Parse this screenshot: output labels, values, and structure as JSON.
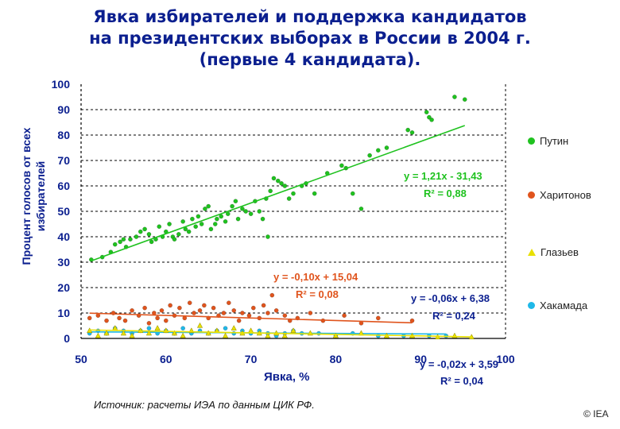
{
  "title_lines": [
    "Явка избирателей и поддержка кандидатов",
    "на президентских выборах в России в 2004 г.",
    "(первые 4 кандидата)."
  ],
  "source": "Источник:  расчеты ИЭА по данным ЦИК РФ.",
  "copyright": "© IEA",
  "colors": {
    "putin": "#1fc21f",
    "kharitonov": "#e0541d",
    "glazyev": "#e8e000",
    "khakamada": "#1fb8e8",
    "axis_text": "#0b1f8f"
  },
  "chart_data": {
    "type": "scatter",
    "xlabel": "Явка, %",
    "ylabel_lines": [
      "Процент голосов от всех",
      "избирателей"
    ],
    "xlim": [
      50,
      100
    ],
    "ylim": [
      0,
      100
    ],
    "x_ticks": [
      50,
      60,
      70,
      80,
      90,
      100
    ],
    "y_ticks": [
      0,
      10,
      20,
      30,
      40,
      50,
      60,
      70,
      80,
      90,
      100
    ],
    "grid": "horizontal dashed",
    "legend_position": "right",
    "series": [
      {
        "name": "Путин",
        "marker": "circle",
        "trend": {
          "slope": 1.21,
          "intercept": -31.43
        },
        "equation": "y = 1,21x - 31,43",
        "r2": "R² = 0,88",
        "points": [
          [
            51.2,
            31
          ],
          [
            52.5,
            32
          ],
          [
            53.5,
            34
          ],
          [
            54,
            37
          ],
          [
            54.6,
            38
          ],
          [
            55,
            39
          ],
          [
            55.3,
            36
          ],
          [
            55.8,
            39
          ],
          [
            56.5,
            40
          ],
          [
            57,
            42
          ],
          [
            57.5,
            43
          ],
          [
            58,
            41
          ],
          [
            58.3,
            38
          ],
          [
            58.8,
            39
          ],
          [
            59.2,
            44
          ],
          [
            59.6,
            40
          ],
          [
            60,
            42
          ],
          [
            60.4,
            45
          ],
          [
            60.8,
            40
          ],
          [
            61,
            39
          ],
          [
            61.5,
            41
          ],
          [
            62,
            46
          ],
          [
            62.3,
            43
          ],
          [
            62.7,
            42
          ],
          [
            63.1,
            47
          ],
          [
            63.5,
            44
          ],
          [
            63.8,
            48
          ],
          [
            64.2,
            45
          ],
          [
            64.6,
            51
          ],
          [
            65,
            52
          ],
          [
            65.3,
            43
          ],
          [
            65.8,
            45
          ],
          [
            66,
            47
          ],
          [
            66.5,
            48
          ],
          [
            67,
            46
          ],
          [
            67.3,
            49
          ],
          [
            67.8,
            52
          ],
          [
            68.2,
            54
          ],
          [
            68.5,
            47
          ],
          [
            69,
            51
          ],
          [
            69.4,
            50
          ],
          [
            70,
            49
          ],
          [
            70.5,
            54
          ],
          [
            71,
            50
          ],
          [
            71.4,
            47
          ],
          [
            71.8,
            55
          ],
          [
            72,
            40
          ],
          [
            72.3,
            58
          ],
          [
            72.7,
            63
          ],
          [
            73.2,
            62
          ],
          [
            73.6,
            61
          ],
          [
            74,
            60
          ],
          [
            74.5,
            55
          ],
          [
            75,
            57
          ],
          [
            76,
            60
          ],
          [
            76.5,
            61
          ],
          [
            77.5,
            57
          ],
          [
            79,
            65
          ],
          [
            80.7,
            68
          ],
          [
            81.2,
            67
          ],
          [
            82,
            57
          ],
          [
            83,
            51
          ],
          [
            84,
            72
          ],
          [
            85,
            74
          ],
          [
            86,
            75
          ],
          [
            88.5,
            82
          ],
          [
            89,
            81
          ],
          [
            90.7,
            89
          ],
          [
            91,
            87
          ],
          [
            91.3,
            86
          ],
          [
            94,
            95
          ],
          [
            95.2,
            94
          ]
        ]
      },
      {
        "name": "Харитонов",
        "marker": "circle",
        "trend": {
          "slope": -0.1,
          "intercept": 15.04
        },
        "equation": "y = -0,10x + 15,04",
        "r2": "R² = 0,08",
        "points": [
          [
            51,
            8
          ],
          [
            52,
            9
          ],
          [
            53,
            7
          ],
          [
            53.8,
            10
          ],
          [
            54.5,
            8
          ],
          [
            55.2,
            7
          ],
          [
            56,
            11
          ],
          [
            56.8,
            9
          ],
          [
            57.5,
            12
          ],
          [
            58,
            6
          ],
          [
            58.6,
            10
          ],
          [
            59,
            8
          ],
          [
            59.5,
            11
          ],
          [
            60,
            7
          ],
          [
            60.5,
            13
          ],
          [
            61,
            9
          ],
          [
            61.6,
            12
          ],
          [
            62.2,
            8
          ],
          [
            62.8,
            14
          ],
          [
            63.3,
            10
          ],
          [
            64,
            11
          ],
          [
            64.5,
            13
          ],
          [
            65,
            8
          ],
          [
            65.6,
            12
          ],
          [
            66.2,
            9
          ],
          [
            66.8,
            10
          ],
          [
            67.4,
            14
          ],
          [
            68,
            11
          ],
          [
            68.6,
            7
          ],
          [
            69,
            10
          ],
          [
            69.8,
            9
          ],
          [
            70.3,
            12
          ],
          [
            71,
            8
          ],
          [
            71.5,
            13
          ],
          [
            72,
            10
          ],
          [
            72.5,
            17
          ],
          [
            73,
            11
          ],
          [
            74,
            9
          ],
          [
            74.6,
            7
          ],
          [
            75.5,
            8
          ],
          [
            77,
            10
          ],
          [
            78.5,
            7
          ],
          [
            81,
            9
          ],
          [
            83,
            6
          ],
          [
            85,
            8
          ],
          [
            89,
            7
          ]
        ]
      },
      {
        "name": "Глазьев",
        "marker": "triangle",
        "trend": {
          "slope": -0.06,
          "intercept": 6.38
        },
        "equation": "y = -0,06x + 6,38",
        "r2": "R² = 0,24",
        "points": [
          [
            51,
            3
          ],
          [
            52,
            1
          ],
          [
            53,
            2
          ],
          [
            54,
            4
          ],
          [
            55,
            2
          ],
          [
            56,
            1
          ],
          [
            57,
            3
          ],
          [
            58,
            2
          ],
          [
            59,
            4
          ],
          [
            60,
            3
          ],
          [
            61,
            2
          ],
          [
            62,
            1
          ],
          [
            63,
            3
          ],
          [
            64,
            5
          ],
          [
            65,
            2
          ],
          [
            66,
            3
          ],
          [
            67,
            1
          ],
          [
            68,
            4
          ],
          [
            69,
            2
          ],
          [
            70,
            3
          ],
          [
            71,
            2
          ],
          [
            72,
            1
          ],
          [
            73,
            2
          ],
          [
            74,
            1
          ],
          [
            75,
            3
          ],
          [
            77,
            2
          ],
          [
            80,
            1
          ],
          [
            83,
            2
          ],
          [
            86,
            1
          ],
          [
            89,
            1
          ],
          [
            92,
            0.5
          ],
          [
            94,
            1
          ],
          [
            96,
            0.5
          ]
        ]
      },
      {
        "name": "Хакамада",
        "marker": "circle",
        "trend": {
          "slope": -0.02,
          "intercept": 3.59
        },
        "equation": "y = -0,02x + 3,59",
        "r2": "R² = 0,04",
        "points": [
          [
            51,
            2
          ],
          [
            52,
            3
          ],
          [
            53,
            2
          ],
          [
            54,
            4
          ],
          [
            55,
            3
          ],
          [
            56,
            2
          ],
          [
            57,
            3
          ],
          [
            58,
            4
          ],
          [
            59,
            2
          ],
          [
            60,
            3
          ],
          [
            61,
            2
          ],
          [
            62,
            4
          ],
          [
            63,
            2
          ],
          [
            64,
            3
          ],
          [
            65,
            2
          ],
          [
            66,
            3
          ],
          [
            67,
            4
          ],
          [
            68,
            2
          ],
          [
            69,
            3
          ],
          [
            70,
            2
          ],
          [
            71,
            3
          ],
          [
            72,
            2
          ],
          [
            73,
            1
          ],
          [
            74,
            2
          ],
          [
            75,
            3
          ],
          [
            76,
            2
          ],
          [
            78,
            2
          ],
          [
            80,
            1
          ],
          [
            82,
            2
          ],
          [
            85,
            1
          ],
          [
            88,
            1
          ],
          [
            91,
            1
          ],
          [
            93,
            1
          ]
        ]
      }
    ]
  }
}
